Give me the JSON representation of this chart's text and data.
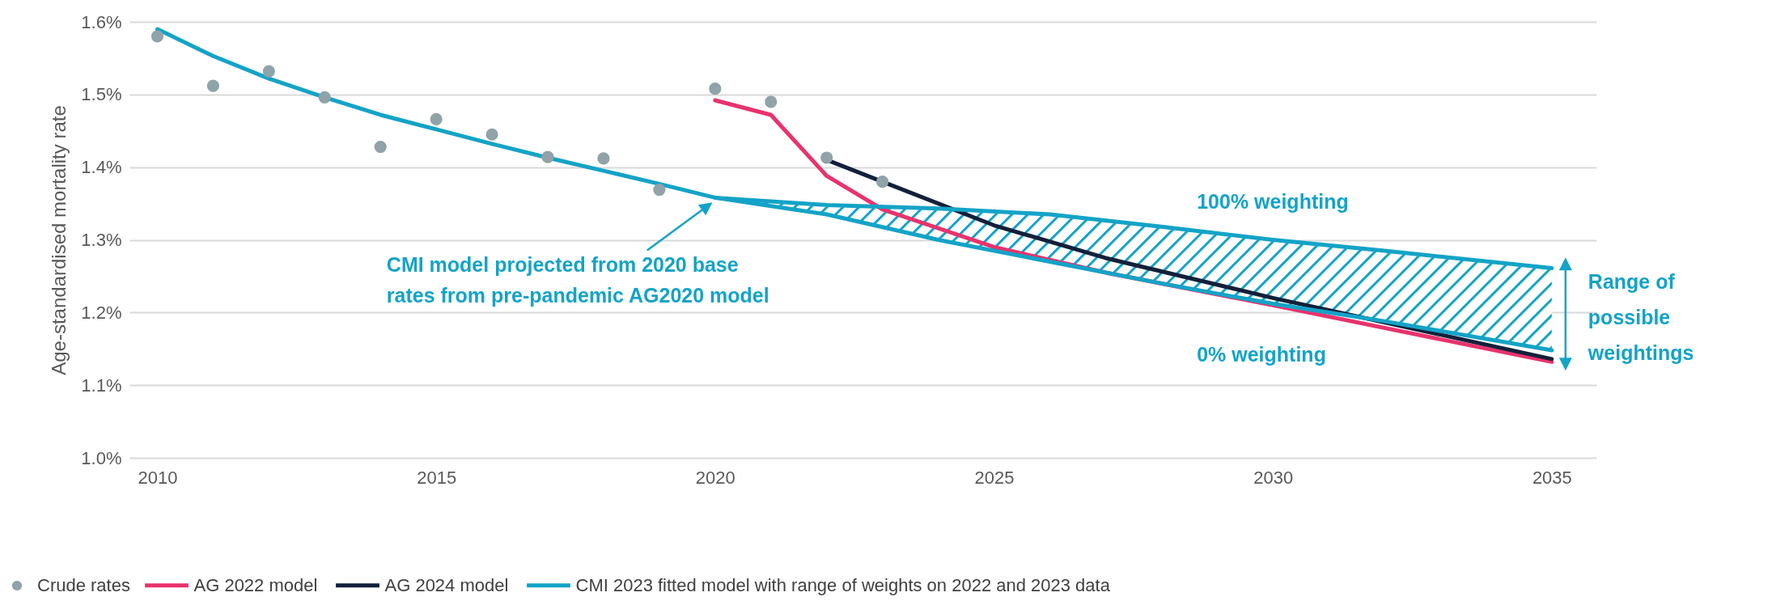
{
  "chart_data": {
    "type": "line",
    "ylabel": "Age-standardised mortality rate",
    "xlim": [
      2009.5,
      2035.8
    ],
    "xticks": [
      2010,
      2015,
      2020,
      2025,
      2030,
      2035
    ],
    "ylim": [
      1.0,
      1.6
    ],
    "yticks": [
      {
        "value": 1.0,
        "label": "1.0%"
      },
      {
        "value": 1.1,
        "label": "1.1%"
      },
      {
        "value": 1.2,
        "label": "1.2%"
      },
      {
        "value": 1.3,
        "label": "1.3%"
      },
      {
        "value": 1.4,
        "label": "1.4%"
      },
      {
        "value": 1.5,
        "label": "1.5%"
      },
      {
        "value": 1.6,
        "label": "1.6%"
      }
    ],
    "grid": "y",
    "legend": "bottom",
    "series": [
      {
        "name": "Crude rates",
        "type": "scatter",
        "color": "#8fa3a8",
        "x": [
          2010,
          2011,
          2012,
          2013,
          2014,
          2015,
          2016,
          2017,
          2018,
          2019,
          2020,
          2021,
          2022,
          2023
        ],
        "values": [
          1.58,
          1.512,
          1.532,
          1.496,
          1.428,
          1.466,
          1.445,
          1.414,
          1.412,
          1.369,
          1.508,
          1.49,
          1.413,
          1.38
        ]
      },
      {
        "name": "AG 2022 model",
        "color": "#e8336d",
        "x": [
          2020,
          2021,
          2022,
          2023,
          2025,
          2027,
          2030,
          2035
        ],
        "values": [
          1.492,
          1.472,
          1.388,
          1.342,
          1.29,
          1.255,
          1.21,
          1.132
        ]
      },
      {
        "name": "AG 2024 model",
        "color": "#13203a",
        "x": [
          2022,
          2023,
          2025,
          2027,
          2030,
          2035
        ],
        "values": [
          1.41,
          1.38,
          1.32,
          1.275,
          1.22,
          1.136
        ]
      },
      {
        "name": "CMI 2023 fitted model with range of weights on 2022 and 2023 data",
        "color": "#14a3c7",
        "x": [
          2010,
          2011,
          2012,
          2013,
          2014,
          2015,
          2016,
          2017,
          2018,
          2019,
          2020,
          2022,
          2024,
          2026,
          2028,
          2030,
          2032,
          2035
        ],
        "values": [
          1.59,
          1.553,
          1.522,
          1.496,
          1.472,
          1.452,
          1.432,
          1.413,
          1.395,
          1.377,
          1.358,
          1.335,
          1.3,
          1.27,
          1.24,
          1.212,
          1.188,
          1.148
        ],
        "lower": [
          null,
          null,
          null,
          null,
          null,
          null,
          null,
          null,
          null,
          null,
          1.358,
          1.335,
          1.3,
          1.27,
          1.24,
          1.212,
          1.188,
          1.148
        ],
        "upper": [
          null,
          null,
          null,
          null,
          null,
          null,
          null,
          null,
          null,
          null,
          1.358,
          1.348,
          1.343,
          1.335,
          1.318,
          1.3,
          1.285,
          1.261
        ]
      },
      {
        "color": "#14a3c7",
        "x": [
          2020,
          2022,
          2024,
          2026,
          2028,
          2030,
          2032,
          2035
        ],
        "values": [
          1.358,
          1.348,
          1.343,
          1.335,
          1.318,
          1.3,
          1.285,
          1.261
        ]
      }
    ],
    "annotations": [
      {
        "text": "CMI model projected from 2020 base\nrates from pre-pandemic AG2020 model",
        "x": 2020,
        "y": 1.358
      },
      {
        "text": "100% weighting",
        "x": 2030,
        "y": 1.3
      },
      {
        "text": "0% weighting",
        "x": 2030,
        "y": 1.212
      },
      {
        "text": "Range of\npossible\nweightings",
        "x": 2035,
        "y": 1.2
      }
    ]
  }
}
